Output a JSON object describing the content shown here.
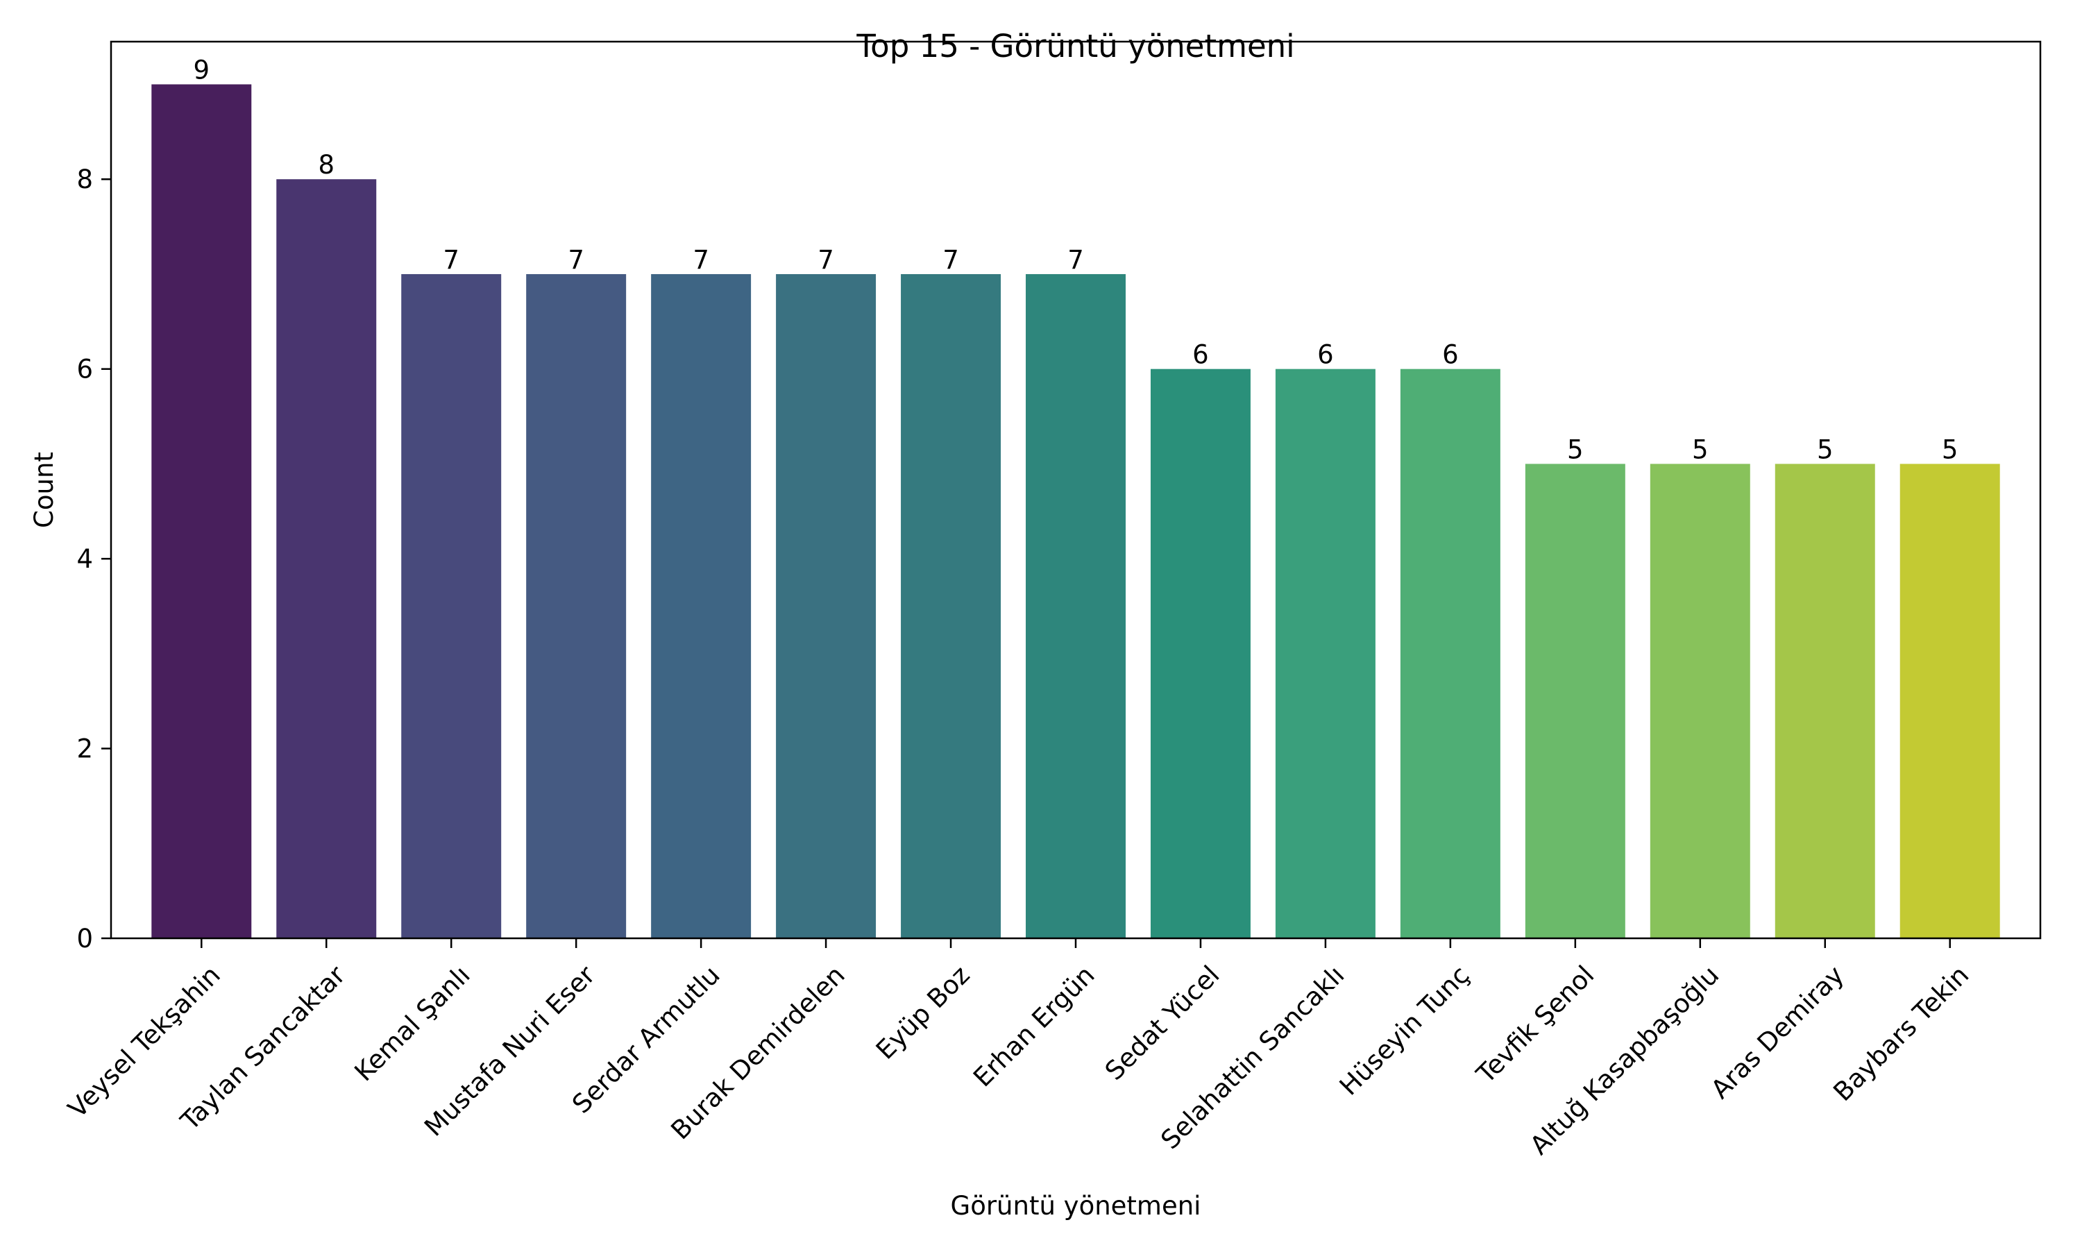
{
  "chart_data": {
    "type": "bar",
    "title": "Top 15 - Görüntü yönetmeni",
    "xlabel": "Görüntü yönetmeni",
    "ylabel": "Count",
    "categories": [
      "Veysel Tekşahin",
      "Taylan Sancaktar",
      "Kemal Şanlı",
      "Mustafa Nuri Eser",
      "Serdar Armutlu",
      "Burak Demirdelen",
      "Eyüp Boz",
      "Erhan Ergün",
      "Sedat Yücel",
      "Selahattin Sancaklı",
      "Hüseyin Tunç",
      "Tevfik Şenol",
      "Altuğ Kasapbaşoğlu",
      "Aras Demiray",
      "Baybars Tekin"
    ],
    "values": [
      9,
      8,
      7,
      7,
      7,
      7,
      7,
      7,
      6,
      6,
      6,
      5,
      5,
      5,
      5
    ],
    "data_labels": [
      "9",
      "8",
      "7",
      "7",
      "7",
      "7",
      "7",
      "7",
      "6",
      "6",
      "6",
      "5",
      "5",
      "5",
      "5"
    ],
    "colors": [
      "#481f5c",
      "#49356f",
      "#484a7c",
      "#455a82",
      "#3e6584",
      "#3a7181",
      "#357a7f",
      "#2e867c",
      "#2a907a",
      "#3a9f7c",
      "#4fae75",
      "#6bba6a",
      "#88c25b",
      "#a4c649",
      "#c3ca33"
    ],
    "yticks": [
      0,
      2,
      4,
      6,
      8
    ],
    "ylim": [
      0,
      9.45
    ],
    "grid": false,
    "legend": "none"
  }
}
